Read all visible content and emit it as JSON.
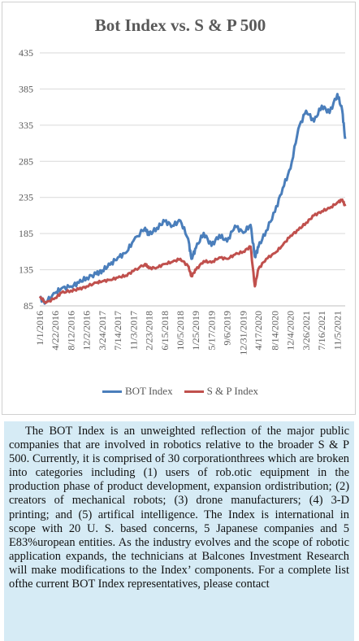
{
  "chart_data": {
    "type": "line",
    "title": "Bot Index vs. S & P 500",
    "ylim": [
      85,
      435
    ],
    "yticks": [
      85,
      135,
      185,
      235,
      285,
      335,
      385,
      435
    ],
    "xtick_labels": [
      "1/1/2016",
      "4/22/2016",
      "8/12/2016",
      "12/2/2016",
      "3/24/2017",
      "7/14/2017",
      "11/3/2017",
      "2/23/2018",
      "6/15/2018",
      "10/5/2018",
      "1/25/2019",
      "5/17/2019",
      "9/6/2019",
      "12/31/2019",
      "4/17/2020",
      "8/14/2020",
      "12/4/2020",
      "3/26/2021",
      "7/16/2021",
      "11/5/2021"
    ],
    "legend_position": "bottom",
    "grid": true,
    "x": [
      "1/1/2016",
      "2/12/2016",
      "4/22/2016",
      "6/3/2016",
      "8/12/2016",
      "10/7/2016",
      "12/2/2016",
      "2/10/2017",
      "3/24/2017",
      "5/19/2017",
      "7/14/2017",
      "9/8/2017",
      "11/3/2017",
      "1/26/2018",
      "2/23/2018",
      "4/20/2018",
      "6/15/2018",
      "8/10/2018",
      "10/5/2018",
      "11/30/2018",
      "12/24/2018",
      "1/25/2019",
      "3/22/2019",
      "5/17/2019",
      "7/12/2019",
      "9/6/2019",
      "11/1/2019",
      "12/31/2019",
      "2/21/2020",
      "3/23/2020",
      "4/17/2020",
      "6/12/2020",
      "8/14/2020",
      "10/9/2020",
      "12/4/2020",
      "1/29/2021",
      "3/26/2021",
      "5/21/2021",
      "7/16/2021",
      "9/10/2021",
      "11/5/2021",
      "12/10/2021",
      "12/31/2021"
    ],
    "series": [
      {
        "name": "BOT Index",
        "color": "#4a7ebb",
        "values": [
          96,
          90,
          103,
          109,
          112,
          117,
          124,
          129,
          134,
          142,
          152,
          158,
          175,
          193,
          183,
          193,
          202,
          196,
          203,
          178,
          150,
          165,
          186,
          168,
          183,
          174,
          196,
          186,
          197,
          153,
          166,
          189,
          215,
          248,
          275,
          330,
          355,
          340,
          362,
          352,
          378,
          355,
          316
        ]
      },
      {
        "name": "S & P Index",
        "color": "#c0504d",
        "values": [
          98,
          89,
          96,
          103,
          106,
          108,
          112,
          117,
          119,
          121,
          124,
          127,
          133,
          143,
          137,
          138,
          143,
          146,
          150,
          140,
          126,
          135,
          147,
          145,
          152,
          150,
          156,
          160,
          167,
          112,
          136,
          150,
          158,
          169,
          182,
          190,
          200,
          210,
          216,
          220,
          228,
          232,
          223
        ]
      }
    ]
  },
  "description": "The BOT Index is an unweighted reflection of the major public companies that are involved in robotics relative to the broader S & P 500. Currently, it is comprised of 30 corporationthrees which are broken into categories including (1) users of rob.otic equipment in the production phase of product development, expansion ordistribution; (2) creators of mechanical robots; (3) drone manufacturers; (4) 3-D printing; and (5) artifical intelligence. The Index is international in scope with 20 U. S. based concerns, 5 Japanese companies and 5 E83%uropean entities. As the industry evolves and the scope of robotic application expands, the technicians at Balcones Investment Research will make modifications to the Index’ components. For a complete list ofthe current BOT Index representatives, please contact"
}
